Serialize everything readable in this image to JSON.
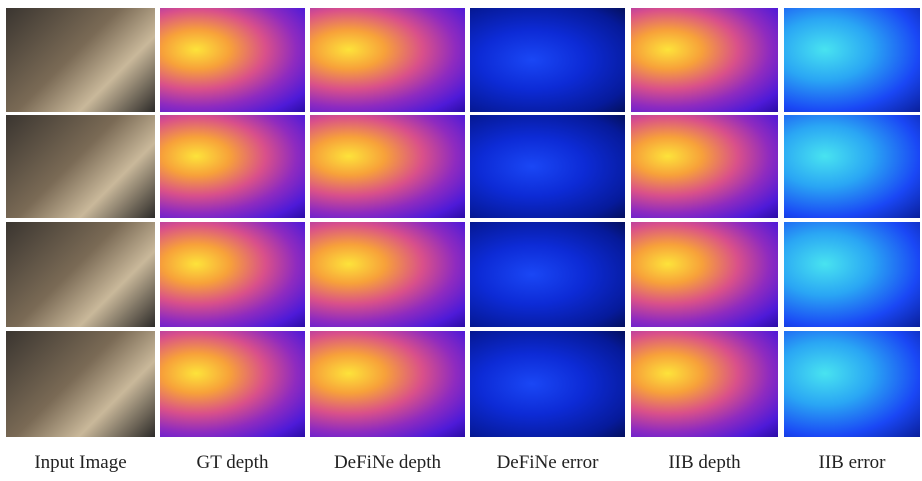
{
  "figure": {
    "columns": [
      "Input Image",
      "GT depth",
      "DeFiNe depth",
      "DeFiNe error",
      "IIB depth",
      "IIB error"
    ]
  }
}
